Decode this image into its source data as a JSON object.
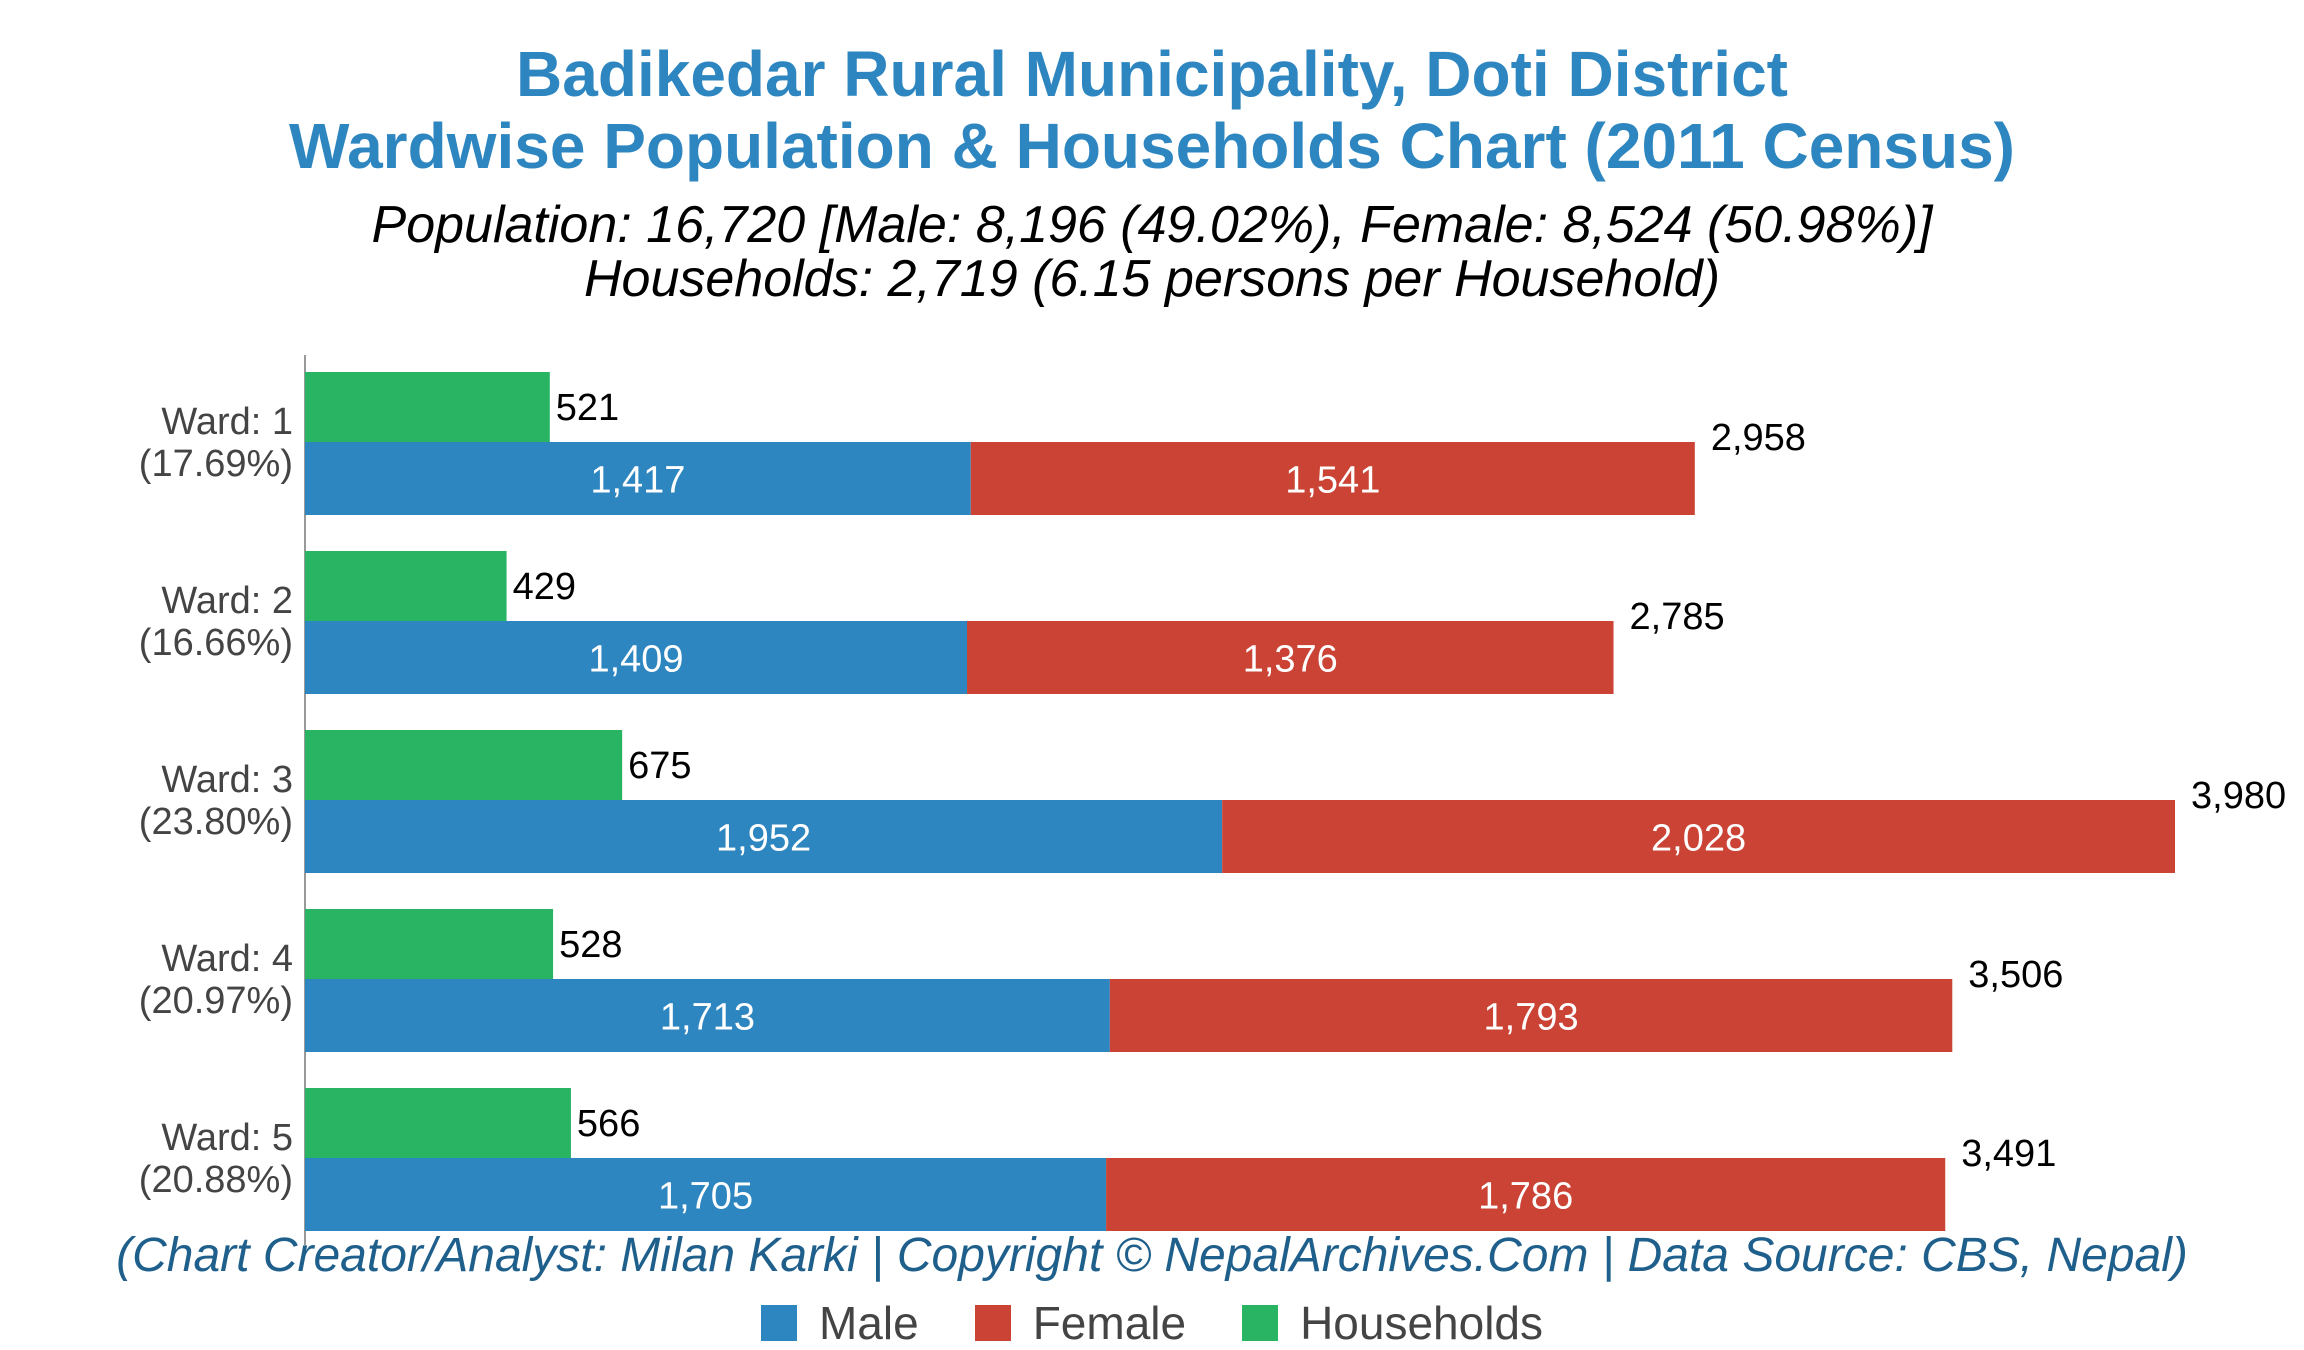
{
  "title_line1": "Badikedar Rural Municipality, Doti District",
  "title_line2": "Wardwise Population & Households Chart (2011 Census)",
  "subtitle_line1": "Population: 16,720 [Male: 8,196 (49.02%), Female: 8,524 (50.98%)]",
  "subtitle_line2": "Households: 2,719 (6.15 persons per Household)",
  "footer": "(Chart Creator/Analyst: Milan Karki | Copyright © NepalArchives.Com | Data Source: CBS, Nepal)",
  "colors": {
    "title": "#2e86c1",
    "male": "#2e86c1",
    "female": "#cb4335",
    "households": "#28b463",
    "footer": "#1f5f8b"
  },
  "chart_data": {
    "type": "bar",
    "orientation": "horizontal",
    "stacked_series": [
      "Male",
      "Female"
    ],
    "categories": [
      "Ward: 1",
      "Ward: 2",
      "Ward: 3",
      "Ward: 4",
      "Ward: 5"
    ],
    "category_shares": [
      "(17.69%)",
      "(16.66%)",
      "(23.80%)",
      "(20.97%)",
      "(20.88%)"
    ],
    "series": [
      {
        "name": "Male",
        "values": [
          1417,
          1409,
          1952,
          1713,
          1705
        ],
        "labels": [
          "1,417",
          "1,409",
          "1,952",
          "1,713",
          "1,705"
        ]
      },
      {
        "name": "Female",
        "values": [
          1541,
          1376,
          2028,
          1793,
          1786
        ],
        "labels": [
          "1,541",
          "1,376",
          "2,028",
          "1,793",
          "1,786"
        ]
      },
      {
        "name": "Households",
        "values": [
          521,
          429,
          675,
          528,
          566
        ],
        "labels": [
          "521",
          "429",
          "675",
          "528",
          "566"
        ]
      }
    ],
    "totals": [
      2958,
      2785,
      3980,
      3506,
      3491
    ],
    "total_labels": [
      "2,958",
      "2,785",
      "3,980",
      "3,506",
      "3,491"
    ],
    "xlim": [
      0,
      4000
    ],
    "grid": false,
    "legend_position": "bottom"
  }
}
